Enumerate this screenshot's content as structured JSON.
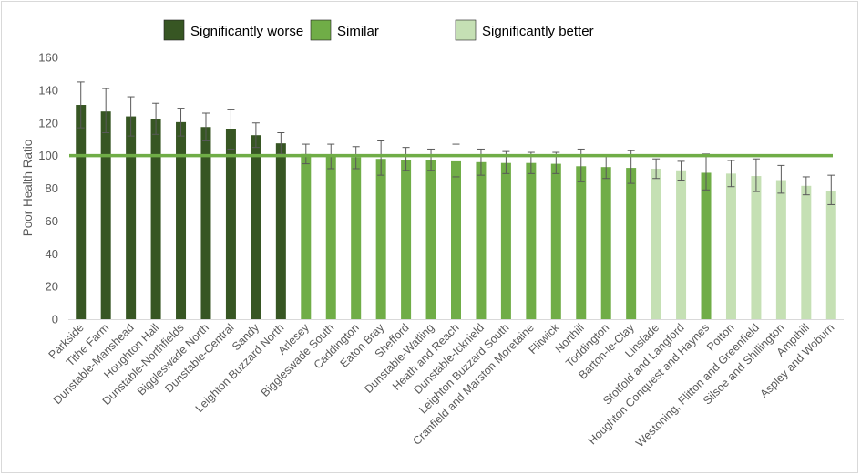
{
  "chart_data": {
    "type": "bar",
    "title": "",
    "xlabel": "",
    "ylabel": "Poor Health Ratio",
    "ylim": [
      0,
      160
    ],
    "yticks": [
      0,
      20,
      40,
      60,
      80,
      100,
      120,
      140,
      160
    ],
    "grid": false,
    "legend_position": "top",
    "reference_line": 100,
    "reference_color": "#70ad47",
    "legend": [
      {
        "key": "worse",
        "label": "Significantly worse",
        "color": "#375623"
      },
      {
        "key": "similar",
        "label": "Similar",
        "color": "#70ad47"
      },
      {
        "key": "better",
        "label": "Significantly better",
        "color": "#c5e0b4"
      }
    ],
    "categories": [
      "Parkside",
      "Tithe Farm",
      "Dunstable-Manshead",
      "Houghton Hall",
      "Dunstable-Northfields",
      "Biggleswade North",
      "Dunstable-Central",
      "Sandy",
      "Leighton Buzzard North",
      "Arlesey",
      "Biggleswade South",
      "Caddington",
      "Eaton Bray",
      "Shefford",
      "Dunstable-Watling",
      "Heath and Reach",
      "Dunstable-Icknield",
      "Leighton Buzzard South",
      "Cranfield and Marston Moretaine",
      "Flitwick",
      "Northill",
      "Toddington",
      "Barton-le-Clay",
      "Linslade",
      "Stotfold and Langford",
      "Houghton Conquest and Haynes",
      "Potton",
      "Westoning, Flitton and Greenfield",
      "Silsoe and Shillington",
      "Ampthill",
      "Aspley and Woburn"
    ],
    "values": [
      131,
      127,
      124,
      122.5,
      120.5,
      117.5,
      116,
      112.5,
      107.5,
      101,
      99.5,
      99,
      98,
      97.5,
      97,
      96.5,
      96,
      95.5,
      95.5,
      95,
      93.5,
      93,
      92.5,
      92,
      91,
      89.5,
      89,
      87.5,
      85,
      81.5,
      78.5
    ],
    "lower": [
      117,
      114,
      112,
      113,
      112,
      109,
      104,
      105,
      101,
      95,
      92,
      92,
      88,
      91,
      91,
      87,
      88,
      89,
      89,
      89,
      84,
      86,
      83,
      86,
      85,
      79,
      81,
      78,
      77,
      76,
      70
    ],
    "upper": [
      145,
      141,
      136,
      132,
      129,
      126,
      128,
      120,
      114,
      107,
      107,
      105.5,
      109,
      105,
      104,
      107,
      104,
      102.5,
      102,
      102,
      104,
      100.5,
      103,
      98,
      96.5,
      101,
      97,
      98,
      94,
      87,
      88
    ],
    "significance": [
      "worse",
      "worse",
      "worse",
      "worse",
      "worse",
      "worse",
      "worse",
      "worse",
      "worse",
      "similar",
      "similar",
      "similar",
      "similar",
      "similar",
      "similar",
      "similar",
      "similar",
      "similar",
      "similar",
      "similar",
      "similar",
      "similar",
      "similar",
      "better",
      "better",
      "similar",
      "better",
      "better",
      "better",
      "better",
      "better"
    ]
  }
}
